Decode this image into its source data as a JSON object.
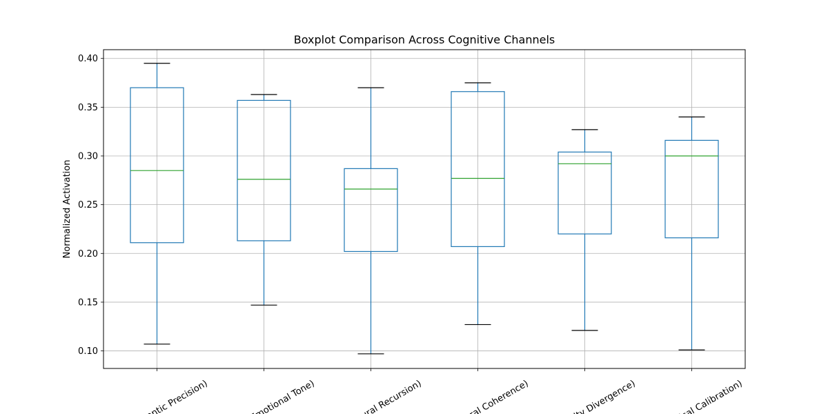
{
  "chart_data": {
    "type": "box",
    "title": "Boxplot Comparison Across Cognitive Channels",
    "xlabel": "",
    "ylabel": "Normalized Activation",
    "ylim": [
      0.082,
      0.409
    ],
    "yticks": [
      0.1,
      0.15,
      0.2,
      0.25,
      0.3,
      0.35,
      0.4
    ],
    "ytick_labels": [
      "0.10",
      "0.15",
      "0.20",
      "0.25",
      "0.30",
      "0.35",
      "0.40"
    ],
    "grid": true,
    "categories": [
      "antic Precision)",
      "Emotional Tone)",
      "tural Recursion)",
      "oral Coherence)",
      "lty Divergence)",
      "ical Calibration)"
    ],
    "boxes": [
      {
        "whisker_low": 0.107,
        "q1": 0.211,
        "median": 0.285,
        "q3": 0.37,
        "whisker_high": 0.395
      },
      {
        "whisker_low": 0.147,
        "q1": 0.213,
        "median": 0.276,
        "q3": 0.357,
        "whisker_high": 0.363
      },
      {
        "whisker_low": 0.097,
        "q1": 0.202,
        "median": 0.266,
        "q3": 0.287,
        "whisker_high": 0.37
      },
      {
        "whisker_low": 0.127,
        "q1": 0.207,
        "median": 0.277,
        "q3": 0.366,
        "whisker_high": 0.375
      },
      {
        "whisker_low": 0.121,
        "q1": 0.22,
        "median": 0.292,
        "q3": 0.304,
        "whisker_high": 0.327
      },
      {
        "whisker_low": 0.101,
        "q1": 0.216,
        "median": 0.3,
        "q3": 0.316,
        "whisker_high": 0.34
      }
    ],
    "colors": {
      "box": "#1f77b4",
      "median": "#2ca02c",
      "cap": "#000000",
      "grid": "#b0b0b0"
    }
  }
}
